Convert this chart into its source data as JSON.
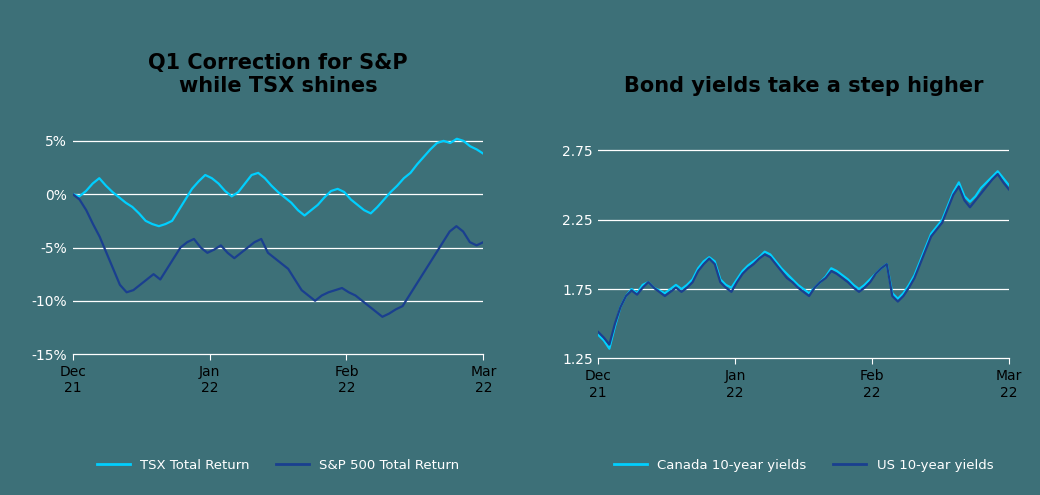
{
  "chart1_title": "Q1 Correction for S&P\nwhile TSX shines",
  "chart2_title": "Bond yields take a step higher",
  "background_color": "#3d7078",
  "chart1_ylabel_ticks": [
    "5%",
    "0%",
    "-5%",
    "-10%",
    "-15%"
  ],
  "chart1_yticks": [
    5,
    0,
    -5,
    -10,
    -15
  ],
  "chart1_ylim": [
    -18,
    8
  ],
  "chart2_ylabel_ticks": [
    "2.75",
    "2.25",
    "1.75",
    "1.25"
  ],
  "chart2_yticks": [
    2.75,
    2.25,
    1.75,
    1.25
  ],
  "chart2_ylim": [
    1.05,
    3.05
  ],
  "xtick_labels": [
    [
      "Dec\n21",
      "Jan\n22",
      "Feb\n22",
      "Mar\n22"
    ],
    [
      "Dec\n21",
      "Jan\n22",
      "Feb\n22",
      "Mar\n22"
    ]
  ],
  "tsx_color": "#00CFFF",
  "sp500_color": "#1a3f8f",
  "canada_yield_color": "#00CFFF",
  "us_yield_color": "#1a3f8f",
  "legend1_labels": [
    "TSX Total Return",
    "S&P 500 Total Return"
  ],
  "legend2_labels": [
    "Canada 10-year yields",
    "US 10-year yields"
  ],
  "text_color": "#ffffff",
  "title_color": "#000000",
  "grid_color": "#ffffff",
  "tsx_data": [
    0.0,
    -0.2,
    0.3,
    1.0,
    1.5,
    0.8,
    0.2,
    -0.3,
    -0.8,
    -1.2,
    -1.8,
    -2.5,
    -2.8,
    -3.0,
    -2.8,
    -2.5,
    -1.5,
    -0.5,
    0.5,
    1.2,
    1.8,
    1.5,
    1.0,
    0.3,
    -0.2,
    0.2,
    1.0,
    1.8,
    2.0,
    1.5,
    0.8,
    0.2,
    -0.3,
    -0.8,
    -1.5,
    -2.0,
    -1.5,
    -1.0,
    -0.3,
    0.3,
    0.5,
    0.2,
    -0.5,
    -1.0,
    -1.5,
    -1.8,
    -1.2,
    -0.5,
    0.2,
    0.8,
    1.5,
    2.0,
    2.8,
    3.5,
    4.2,
    4.8,
    5.0,
    4.8,
    5.2,
    5.0,
    4.5,
    4.2,
    3.8
  ],
  "sp500_data": [
    0.0,
    -0.5,
    -1.5,
    -2.8,
    -4.0,
    -5.5,
    -7.0,
    -8.5,
    -9.2,
    -9.0,
    -8.5,
    -8.0,
    -7.5,
    -8.0,
    -7.0,
    -6.0,
    -5.0,
    -4.5,
    -4.2,
    -5.0,
    -5.5,
    -5.2,
    -4.8,
    -5.5,
    -6.0,
    -5.5,
    -5.0,
    -4.5,
    -4.2,
    -5.5,
    -6.0,
    -6.5,
    -7.0,
    -8.0,
    -9.0,
    -9.5,
    -10.0,
    -9.5,
    -9.2,
    -9.0,
    -8.8,
    -9.2,
    -9.5,
    -10.0,
    -10.5,
    -11.0,
    -11.5,
    -11.2,
    -10.8,
    -10.5,
    -9.5,
    -8.5,
    -7.5,
    -6.5,
    -5.5,
    -4.5,
    -3.5,
    -3.0,
    -3.5,
    -4.5,
    -4.8,
    -4.5
  ],
  "canada_yield_data": [
    1.42,
    1.38,
    1.32,
    1.48,
    1.62,
    1.7,
    1.75,
    1.72,
    1.78,
    1.8,
    1.76,
    1.74,
    1.72,
    1.75,
    1.78,
    1.75,
    1.78,
    1.82,
    1.9,
    1.95,
    1.98,
    1.95,
    1.82,
    1.78,
    1.76,
    1.82,
    1.88,
    1.92,
    1.95,
    1.98,
    2.02,
    2.0,
    1.95,
    1.9,
    1.86,
    1.82,
    1.78,
    1.75,
    1.72,
    1.76,
    1.8,
    1.84,
    1.9,
    1.88,
    1.85,
    1.82,
    1.78,
    1.75,
    1.78,
    1.82,
    1.86,
    1.9,
    1.93,
    1.72,
    1.68,
    1.72,
    1.78,
    1.85,
    1.95,
    2.05,
    2.15,
    2.2,
    2.25,
    2.35,
    2.45,
    2.52,
    2.42,
    2.38,
    2.42,
    2.48,
    2.52,
    2.56,
    2.6,
    2.55,
    2.5
  ],
  "us_yield_data": [
    1.44,
    1.4,
    1.35,
    1.5,
    1.62,
    1.7,
    1.74,
    1.71,
    1.76,
    1.8,
    1.76,
    1.73,
    1.7,
    1.73,
    1.76,
    1.73,
    1.76,
    1.8,
    1.88,
    1.93,
    1.97,
    1.93,
    1.8,
    1.76,
    1.73,
    1.8,
    1.86,
    1.9,
    1.93,
    1.97,
    2.0,
    1.98,
    1.93,
    1.88,
    1.83,
    1.8,
    1.76,
    1.73,
    1.7,
    1.76,
    1.8,
    1.83,
    1.88,
    1.86,
    1.83,
    1.8,
    1.76,
    1.73,
    1.76,
    1.8,
    1.86,
    1.9,
    1.93,
    1.7,
    1.66,
    1.7,
    1.76,
    1.83,
    1.93,
    2.03,
    2.13,
    2.18,
    2.23,
    2.33,
    2.43,
    2.49,
    2.39,
    2.34,
    2.39,
    2.44,
    2.49,
    2.54,
    2.58,
    2.52,
    2.47
  ]
}
